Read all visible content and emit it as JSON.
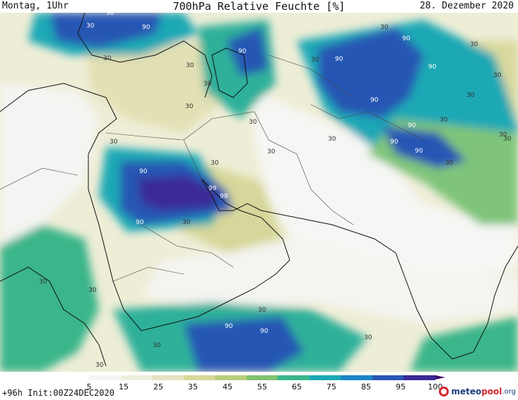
{
  "header": {
    "left": "Montag, 1Uhr",
    "center": "700hPa Relative Feuchte [%]",
    "right": "28. Dezember 2020"
  },
  "footer": {
    "run_info": "+96h Init:00Z24DEC2020",
    "logo_text_a": "meteo",
    "logo_text_b": "pool",
    "logo_text_c": ".org"
  },
  "colorbar": {
    "ticks": [
      "5",
      "15",
      "25",
      "35",
      "45",
      "55",
      "65",
      "75",
      "85",
      "95",
      "100"
    ],
    "colors": [
      "#f4f4f2",
      "#f0efde",
      "#e6e4c0",
      "#d8d89a",
      "#b7cf7a",
      "#80c36e",
      "#3ab58a",
      "#1ca8b5",
      "#1b86c6",
      "#2857b4",
      "#3a2a96",
      "#3a0a6a"
    ]
  },
  "map": {
    "contour_labels": [
      "90",
      "30",
      "90",
      "30",
      "30",
      "90",
      "90",
      "90",
      "30",
      "90",
      "30",
      "30",
      "30",
      "30",
      "90",
      "99",
      "98",
      "30",
      "30",
      "90",
      "30",
      "30",
      "90",
      "90",
      "30",
      "30",
      "30",
      "30",
      "90",
      "30",
      "90",
      "30",
      "30",
      "30",
      "30",
      "30",
      "30",
      "90",
      "90",
      "30",
      "30",
      "30"
    ]
  }
}
